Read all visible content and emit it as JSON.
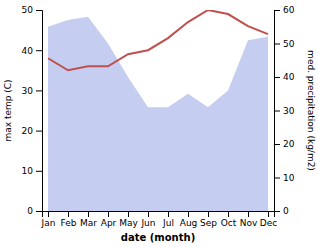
{
  "chart_data": {
    "type": "line",
    "categories": [
      "Jan",
      "Feb",
      "Mar",
      "Apr",
      "May",
      "Jun",
      "Jul",
      "Aug",
      "Sep",
      "Oct",
      "Nov",
      "Dec"
    ],
    "xlabel": "date (month)",
    "ylabel": "max temp (C)",
    "y2label": "med. precipitation (kg/m2)",
    "series": [
      {
        "type": "line",
        "color": "#c0504d",
        "values": [
          38,
          35,
          36,
          36,
          39,
          40,
          43,
          47,
          50,
          49,
          46,
          44
        ]
      },
      {
        "type": "area",
        "color": "#c5cef0",
        "axis": "y2",
        "values": [
          55,
          57,
          58,
          50,
          40,
          31,
          31,
          35,
          31,
          36,
          51,
          52
        ]
      }
    ],
    "ylim": [
      0,
      50
    ],
    "yticks": [
      0,
      10,
      20,
      30,
      40,
      50
    ],
    "y2lim": [
      0,
      60
    ],
    "y2ticks": [
      0,
      10,
      20,
      30,
      40,
      50,
      60
    ],
    "grid": false
  }
}
